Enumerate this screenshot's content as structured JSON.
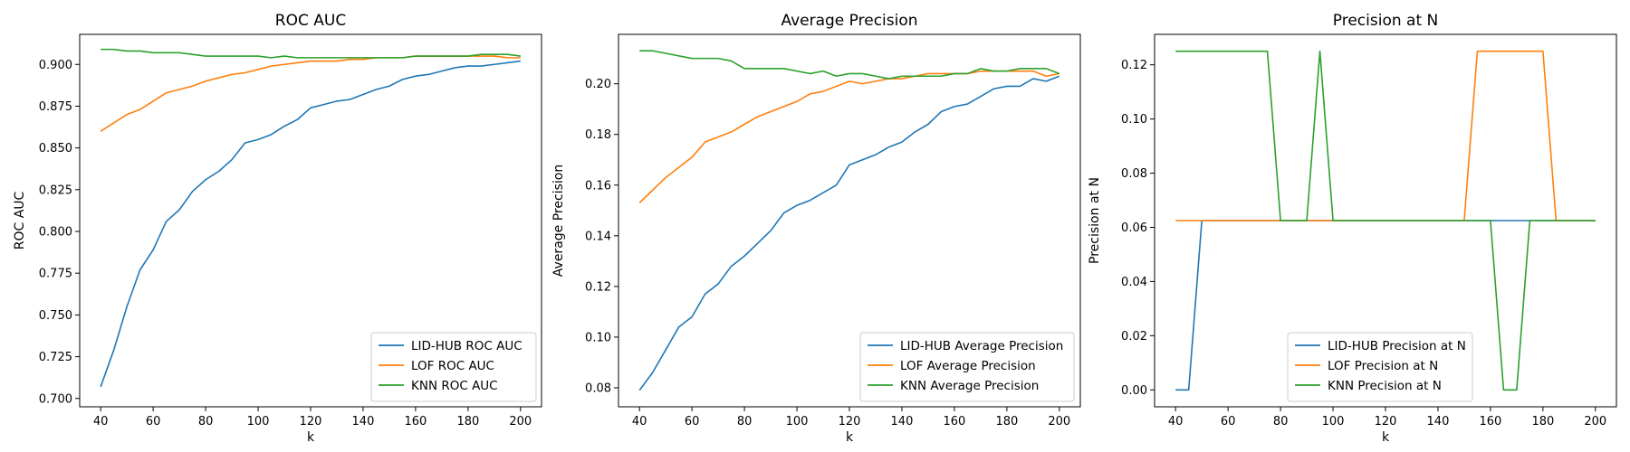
{
  "chart_data": [
    {
      "type": "line",
      "title": "ROC AUC",
      "xlabel": "k",
      "ylabel": "ROC AUC",
      "xlim": [
        32,
        208
      ],
      "ylim": [
        0.695,
        0.918
      ],
      "xticks": [
        40,
        60,
        80,
        100,
        120,
        140,
        160,
        180,
        200
      ],
      "yticks": [
        0.7,
        0.725,
        0.75,
        0.775,
        0.8,
        0.825,
        0.85,
        0.875,
        0.9
      ],
      "ytick_labels": [
        "0.700",
        "0.725",
        "0.750",
        "0.775",
        "0.800",
        "0.825",
        "0.850",
        "0.875",
        "0.900"
      ],
      "legend_position": "lower-right",
      "grid": false,
      "x": [
        40,
        45,
        50,
        55,
        60,
        65,
        70,
        75,
        80,
        85,
        90,
        95,
        100,
        105,
        110,
        115,
        120,
        125,
        130,
        135,
        140,
        145,
        150,
        155,
        160,
        165,
        170,
        175,
        180,
        185,
        190,
        195,
        200
      ],
      "series": [
        {
          "name": "LID-HUB ROC AUC",
          "color": "#1f77b4",
          "values": [
            0.707,
            0.729,
            0.755,
            0.777,
            0.789,
            0.806,
            0.813,
            0.824,
            0.831,
            0.836,
            0.843,
            0.853,
            0.855,
            0.858,
            0.863,
            0.867,
            0.874,
            0.876,
            0.878,
            0.879,
            0.882,
            0.885,
            0.887,
            0.891,
            0.893,
            0.894,
            0.896,
            0.898,
            0.899,
            0.899,
            0.9,
            0.901,
            0.902
          ]
        },
        {
          "name": "LOF ROC AUC",
          "color": "#ff7f0e",
          "values": [
            0.86,
            0.865,
            0.87,
            0.873,
            0.878,
            0.883,
            0.885,
            0.887,
            0.89,
            0.892,
            0.894,
            0.895,
            0.897,
            0.899,
            0.9,
            0.901,
            0.902,
            0.902,
            0.902,
            0.903,
            0.903,
            0.904,
            0.904,
            0.904,
            0.905,
            0.905,
            0.905,
            0.905,
            0.905,
            0.905,
            0.905,
            0.904,
            0.904
          ]
        },
        {
          "name": "KNN ROC AUC",
          "color": "#2ca02c",
          "values": [
            0.909,
            0.909,
            0.908,
            0.908,
            0.907,
            0.907,
            0.907,
            0.906,
            0.905,
            0.905,
            0.905,
            0.905,
            0.905,
            0.904,
            0.905,
            0.904,
            0.904,
            0.904,
            0.904,
            0.904,
            0.904,
            0.904,
            0.904,
            0.904,
            0.905,
            0.905,
            0.905,
            0.905,
            0.905,
            0.906,
            0.906,
            0.906,
            0.905
          ]
        }
      ]
    },
    {
      "type": "line",
      "title": "Average Precision",
      "xlabel": "k",
      "ylabel": "Average Precision",
      "xlim": [
        32,
        208
      ],
      "ylim": [
        0.0725,
        0.2195
      ],
      "xticks": [
        40,
        60,
        80,
        100,
        120,
        140,
        160,
        180,
        200
      ],
      "yticks": [
        0.08,
        0.1,
        0.12,
        0.14,
        0.16,
        0.18,
        0.2
      ],
      "ytick_labels": [
        "0.08",
        "0.10",
        "0.12",
        "0.14",
        "0.16",
        "0.18",
        "0.20"
      ],
      "legend_position": "lower-right",
      "grid": false,
      "x": [
        40,
        45,
        50,
        55,
        60,
        65,
        70,
        75,
        80,
        85,
        90,
        95,
        100,
        105,
        110,
        115,
        120,
        125,
        130,
        135,
        140,
        145,
        150,
        155,
        160,
        165,
        170,
        175,
        180,
        185,
        190,
        195,
        200
      ],
      "series": [
        {
          "name": "LID-HUB Average Precision",
          "color": "#1f77b4",
          "values": [
            0.079,
            0.086,
            0.095,
            0.104,
            0.108,
            0.117,
            0.121,
            0.128,
            0.132,
            0.137,
            0.142,
            0.149,
            0.152,
            0.154,
            0.157,
            0.16,
            0.168,
            0.17,
            0.172,
            0.175,
            0.177,
            0.181,
            0.184,
            0.189,
            0.191,
            0.192,
            0.195,
            0.198,
            0.199,
            0.199,
            0.202,
            0.201,
            0.203
          ]
        },
        {
          "name": "LOF Average Precision",
          "color": "#ff7f0e",
          "values": [
            0.153,
            0.158,
            0.163,
            0.167,
            0.171,
            0.177,
            0.179,
            0.181,
            0.184,
            0.187,
            0.189,
            0.191,
            0.193,
            0.196,
            0.197,
            0.199,
            0.201,
            0.2,
            0.201,
            0.202,
            0.202,
            0.203,
            0.204,
            0.204,
            0.204,
            0.204,
            0.205,
            0.205,
            0.205,
            0.205,
            0.205,
            0.203,
            0.204
          ]
        },
        {
          "name": "KNN Average Precision",
          "color": "#2ca02c",
          "values": [
            0.213,
            0.213,
            0.212,
            0.211,
            0.21,
            0.21,
            0.21,
            0.209,
            0.206,
            0.206,
            0.206,
            0.206,
            0.205,
            0.204,
            0.205,
            0.203,
            0.204,
            0.204,
            0.203,
            0.202,
            0.203,
            0.203,
            0.203,
            0.203,
            0.204,
            0.204,
            0.206,
            0.205,
            0.205,
            0.206,
            0.206,
            0.206,
            0.204
          ]
        }
      ]
    },
    {
      "type": "line",
      "title": "Precision at N",
      "xlabel": "k",
      "ylabel": "Precision at N",
      "xlim": [
        32,
        208
      ],
      "ylim": [
        -0.00625,
        0.13125
      ],
      "xticks": [
        40,
        60,
        80,
        100,
        120,
        140,
        160,
        180,
        200
      ],
      "yticks": [
        0.0,
        0.02,
        0.04,
        0.06,
        0.08,
        0.1,
        0.12
      ],
      "ytick_labels": [
        "0.00",
        "0.02",
        "0.04",
        "0.06",
        "0.08",
        "0.10",
        "0.12"
      ],
      "legend_position": "lower-center",
      "grid": false,
      "x": [
        40,
        45,
        50,
        55,
        60,
        65,
        70,
        75,
        80,
        85,
        90,
        95,
        100,
        105,
        110,
        115,
        120,
        125,
        130,
        135,
        140,
        145,
        150,
        155,
        160,
        165,
        170,
        175,
        180,
        185,
        190,
        195,
        200
      ],
      "series": [
        {
          "name": "LID-HUB Precision at N",
          "color": "#1f77b4",
          "values": [
            0,
            0,
            0.0625,
            0.0625,
            0.0625,
            0.0625,
            0.0625,
            0.0625,
            0.0625,
            0.0625,
            0.0625,
            0.0625,
            0.0625,
            0.0625,
            0.0625,
            0.0625,
            0.0625,
            0.0625,
            0.0625,
            0.0625,
            0.0625,
            0.0625,
            0.0625,
            0.0625,
            0.0625,
            0.0625,
            0.0625,
            0.0625,
            0.0625,
            0.0625,
            0.0625,
            0.0625,
            0.0625
          ]
        },
        {
          "name": "LOF Precision at N",
          "color": "#ff7f0e",
          "values": [
            0.0625,
            0.0625,
            0.0625,
            0.0625,
            0.0625,
            0.0625,
            0.0625,
            0.0625,
            0.0625,
            0.0625,
            0.0625,
            0.0625,
            0.0625,
            0.0625,
            0.0625,
            0.0625,
            0.0625,
            0.0625,
            0.0625,
            0.0625,
            0.0625,
            0.0625,
            0.0625,
            0.125,
            0.125,
            0.125,
            0.125,
            0.125,
            0.125,
            0.0625,
            0.0625,
            0.0625,
            0.0625
          ]
        },
        {
          "name": "KNN Precision at N",
          "color": "#2ca02c",
          "values": [
            0.125,
            0.125,
            0.125,
            0.125,
            0.125,
            0.125,
            0.125,
            0.125,
            0.0625,
            0.0625,
            0.0625,
            0.125,
            0.0625,
            0.0625,
            0.0625,
            0.0625,
            0.0625,
            0.0625,
            0.0625,
            0.0625,
            0.0625,
            0.0625,
            0.0625,
            0.0625,
            0.0625,
            0,
            0,
            0.0625,
            0.0625,
            0.0625,
            0.0625,
            0.0625,
            0.0625
          ]
        }
      ]
    }
  ]
}
